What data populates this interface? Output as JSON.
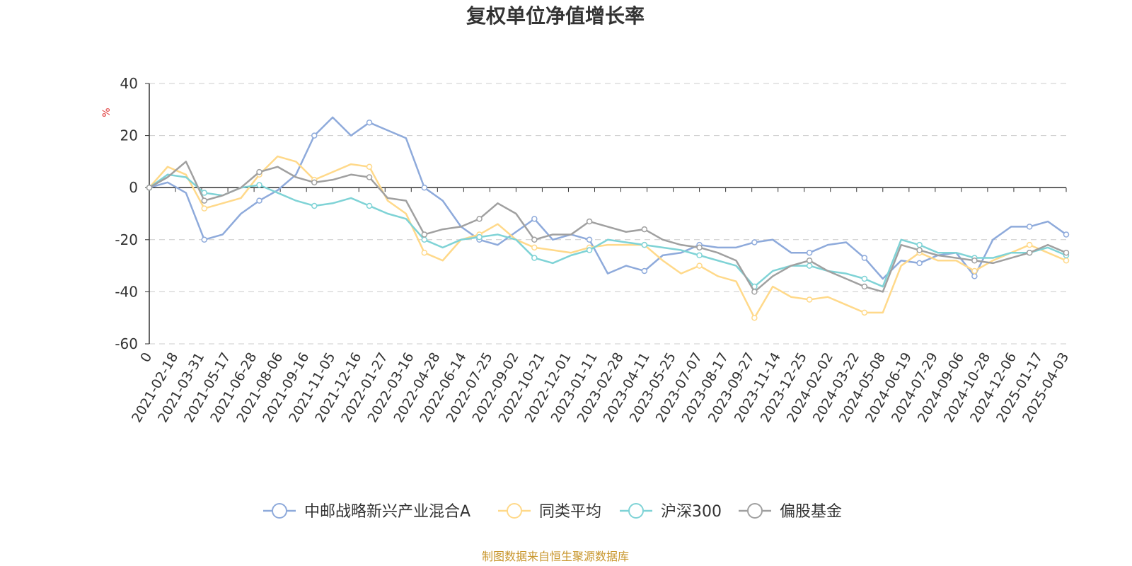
{
  "chart_data": {
    "type": "line",
    "title": "复权单位净值增长率",
    "ylabel": "%",
    "ylim": [
      -60,
      40
    ],
    "yticks": [
      40,
      20,
      0,
      -20,
      -40,
      -60
    ],
    "grid": true,
    "legend_position": "bottom",
    "source": "制图数据来自恒生聚源数据库",
    "x_tick_labels": [
      "0",
      "2021-02-18",
      "2021-03-31",
      "2021-05-17",
      "2021-06-28",
      "2021-08-06",
      "2021-09-16",
      "2021-11-05",
      "2021-12-16",
      "2022-01-27",
      "2022-03-16",
      "2022-04-28",
      "2022-06-14",
      "2022-07-25",
      "2022-09-02",
      "2022-10-21",
      "2022-12-01",
      "2023-01-11",
      "2023-02-28",
      "2023-04-11",
      "2023-05-25",
      "2023-07-07",
      "2023-08-17",
      "2023-09-27",
      "2023-11-14",
      "2023-12-25",
      "2024-02-02",
      "2024-03-22",
      "2024-05-08",
      "2024-06-19",
      "2024-07-29",
      "2024-09-06",
      "2024-10-28",
      "2024-12-06",
      "2025-01-17",
      "2025-04-03"
    ],
    "series": [
      {
        "name": "中邮战略新兴产业混合A",
        "color": "#8eaadb",
        "values": [
          0,
          2,
          -2,
          -20,
          -18,
          -10,
          -5,
          -1,
          5,
          20,
          27,
          20,
          25,
          22,
          19,
          0,
          -5,
          -15,
          -20,
          -22,
          -17,
          -12,
          -20,
          -18,
          -20,
          -33,
          -30,
          -32,
          -26,
          -25,
          -22,
          -23,
          -23,
          -21,
          -20,
          -25,
          -25,
          -22,
          -21,
          -27,
          -35,
          -28,
          -29,
          -26,
          -25,
          -34,
          -20,
          -15,
          -15,
          -13,
          -18
        ]
      },
      {
        "name": "同类平均",
        "color": "#ffd98a",
        "values": [
          0,
          8,
          5,
          -8,
          -6,
          -4,
          5,
          12,
          10,
          3,
          6,
          9,
          8,
          -5,
          -10,
          -25,
          -28,
          -20,
          -18,
          -14,
          -20,
          -23,
          -24,
          -25,
          -23,
          -22,
          -22,
          -22,
          -28,
          -33,
          -30,
          -34,
          -36,
          -50,
          -38,
          -42,
          -43,
          -42,
          -45,
          -48,
          -48,
          -30,
          -25,
          -28,
          -28,
          -32,
          -28,
          -25,
          -22,
          -25,
          -28
        ]
      },
      {
        "name": "沪深300",
        "color": "#7fd3d6",
        "values": [
          0,
          5,
          4,
          -2,
          -3,
          0,
          1,
          -2,
          -5,
          -7,
          -6,
          -4,
          -7,
          -10,
          -12,
          -20,
          -23,
          -20,
          -19,
          -18,
          -20,
          -27,
          -29,
          -26,
          -24,
          -20,
          -21,
          -22,
          -23,
          -24,
          -26,
          -28,
          -30,
          -38,
          -32,
          -30,
          -30,
          -32,
          -33,
          -35,
          -38,
          -20,
          -22,
          -25,
          -25,
          -27,
          -27,
          -25,
          -25,
          -23,
          -26
        ]
      },
      {
        "name": "偏股基金",
        "color": "#a0a0a0",
        "values": [
          0,
          4,
          10,
          -5,
          -3,
          0,
          6,
          8,
          4,
          2,
          3,
          5,
          4,
          -4,
          -5,
          -18,
          -16,
          -15,
          -12,
          -6,
          -10,
          -20,
          -18,
          -18,
          -13,
          -15,
          -17,
          -16,
          -20,
          -22,
          -23,
          -25,
          -28,
          -40,
          -34,
          -30,
          -28,
          -32,
          -35,
          -38,
          -40,
          -22,
          -24,
          -26,
          -27,
          -28,
          -29,
          -27,
          -25,
          -22,
          -25
        ]
      }
    ]
  }
}
